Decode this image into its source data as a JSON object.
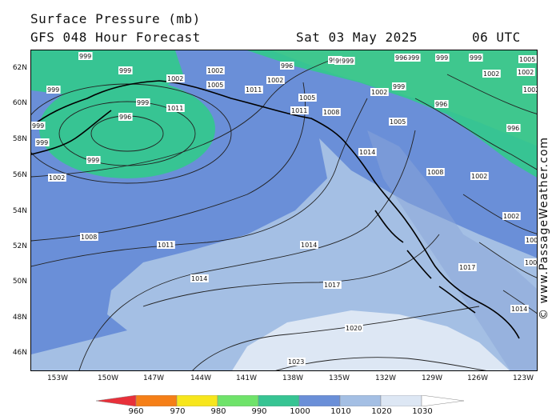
{
  "header": {
    "title": "Surface Pressure (mb)",
    "subtitle": "GFS 048 Hour Forecast",
    "date": "Sat 03 May 2025",
    "time": "06 UTC"
  },
  "credit": "© www.PassageWeather.com",
  "axes": {
    "latitudes": [
      "62N",
      "60N",
      "58N",
      "56N",
      "54N",
      "52N",
      "50N",
      "48N",
      "46N"
    ],
    "longitudes": [
      "153W",
      "150W",
      "147W",
      "144W",
      "141W",
      "138W",
      "135W",
      "132W",
      "129W",
      "126W",
      "123W"
    ]
  },
  "legend": {
    "labels": [
      "960",
      "970",
      "980",
      "990",
      "1000",
      "1010",
      "1020",
      "1030"
    ],
    "colors": [
      "#e8303a",
      "#f57f17",
      "#f7e61c",
      "#6fe36a",
      "#37c493",
      "#6a8fd8",
      "#a4bfe4",
      "#dde7f4",
      "#ffffff"
    ]
  },
  "isobar_labels": [
    "999",
    "999",
    "999",
    "999",
    "999",
    "999",
    "999",
    "999",
    "999",
    "999",
    "999",
    "999",
    "999",
    "999",
    "996",
    "996",
    "996",
    "996",
    "996",
    "1002",
    "1002",
    "1002",
    "1002",
    "1002",
    "1002",
    "1002",
    "1002",
    "1002",
    "1002",
    "1002",
    "1005",
    "1005",
    "1005",
    "1005",
    "1008",
    "1008",
    "1008",
    "1008",
    "1011",
    "1011",
    "1011",
    "1011",
    "1014",
    "1014",
    "1014",
    "1014",
    "1017",
    "1017",
    "1020",
    "1023"
  ]
}
